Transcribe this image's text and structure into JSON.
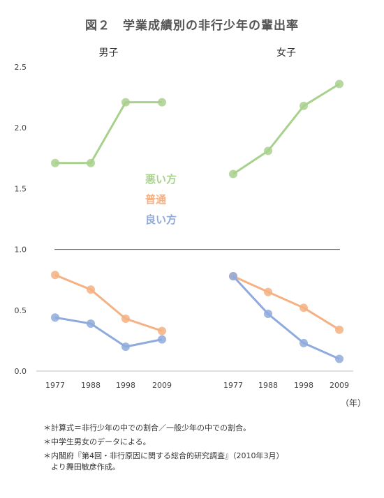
{
  "chart_data": {
    "type": "line",
    "title": "図２　学業成績別の非行少年の輩出率",
    "ylim": [
      0,
      2.5
    ],
    "yticks": [
      "0.0",
      "0.5",
      "1.0",
      "1.5",
      "2.0",
      "2.5"
    ],
    "reference_line": 1.0,
    "x_unit": "（年）",
    "categories": [
      "1977",
      "1988",
      "1998",
      "2009"
    ],
    "legend_placement": "center",
    "series_labels": [
      {
        "key": "bad",
        "label": "悪い方",
        "color": "#a9d18e"
      },
      {
        "key": "avg",
        "label": "普通",
        "color": "#f4b183"
      },
      {
        "key": "good",
        "label": "良い方",
        "color": "#8faadc"
      }
    ],
    "panels": [
      {
        "title": "男子",
        "series": [
          {
            "key": "bad",
            "values": [
              1.71,
              1.71,
              2.21,
              2.21
            ]
          },
          {
            "key": "avg",
            "values": [
              0.79,
              0.67,
              0.43,
              0.33
            ]
          },
          {
            "key": "good",
            "values": [
              0.44,
              0.39,
              0.2,
              0.26
            ]
          }
        ]
      },
      {
        "title": "女子",
        "series": [
          {
            "key": "bad",
            "values": [
              1.62,
              1.81,
              2.18,
              2.36
            ]
          },
          {
            "key": "avg",
            "values": [
              0.78,
              0.65,
              0.52,
              0.34
            ]
          },
          {
            "key": "good",
            "values": [
              0.78,
              0.47,
              0.23,
              0.1
            ]
          }
        ]
      }
    ]
  },
  "notes": [
    [
      "＊計算式＝非行少年の中での割合／一般少年の中での割合。"
    ],
    [
      "＊中学生男女のデータによる。"
    ],
    [
      "＊内閣府『第4回・非行原因に関する総合的研究調査』（2010年3月）",
      "　より舞田敏彦作成。"
    ]
  ]
}
